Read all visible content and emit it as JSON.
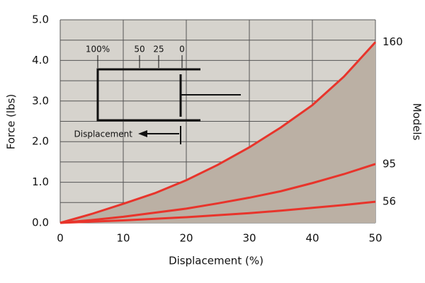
{
  "chart_data": {
    "type": "line",
    "x_label": "Displacement (%)",
    "y_label": "Force (lbs)",
    "y2_label": "Models",
    "x": [
      0,
      5,
      10,
      15,
      20,
      25,
      30,
      35,
      40,
      45,
      50
    ],
    "series": [
      {
        "name": "160",
        "color": "#e8342b",
        "values": [
          0,
          0.22,
          0.47,
          0.73,
          1.05,
          1.43,
          1.86,
          2.35,
          2.9,
          3.6,
          4.45
        ],
        "fill": "#bbb0a4"
      },
      {
        "name": "95",
        "color": "#e8342b",
        "values": [
          0,
          0.07,
          0.15,
          0.25,
          0.35,
          0.48,
          0.62,
          0.78,
          0.98,
          1.2,
          1.45
        ]
      },
      {
        "name": "56",
        "color": "#e8342b",
        "values": [
          0,
          0.03,
          0.06,
          0.1,
          0.14,
          0.19,
          0.24,
          0.3,
          0.37,
          0.44,
          0.52
        ]
      }
    ],
    "xlim": [
      0,
      50
    ],
    "xticks": [
      0,
      10,
      20,
      30,
      40,
      50
    ],
    "ylim": [
      0,
      5
    ],
    "yticks": [
      {
        "value": 0,
        "label": "0.0"
      },
      {
        "value": 1,
        "label": "1.0"
      },
      {
        "value": 2,
        "label": "2.0"
      },
      {
        "value": 3,
        "label": "3.0"
      },
      {
        "value": 4,
        "label": "4.0"
      },
      {
        "value": 5,
        "label": "5.0"
      }
    ],
    "minor_yticks": [
      0.5,
      1.5,
      2.5,
      3.5,
      4.5
    ],
    "grid": true,
    "background": "#d6d3cd",
    "inset": {
      "scale_labels": [
        "100%",
        "50",
        "25",
        "0"
      ],
      "arrow_label": "Displacement"
    }
  }
}
